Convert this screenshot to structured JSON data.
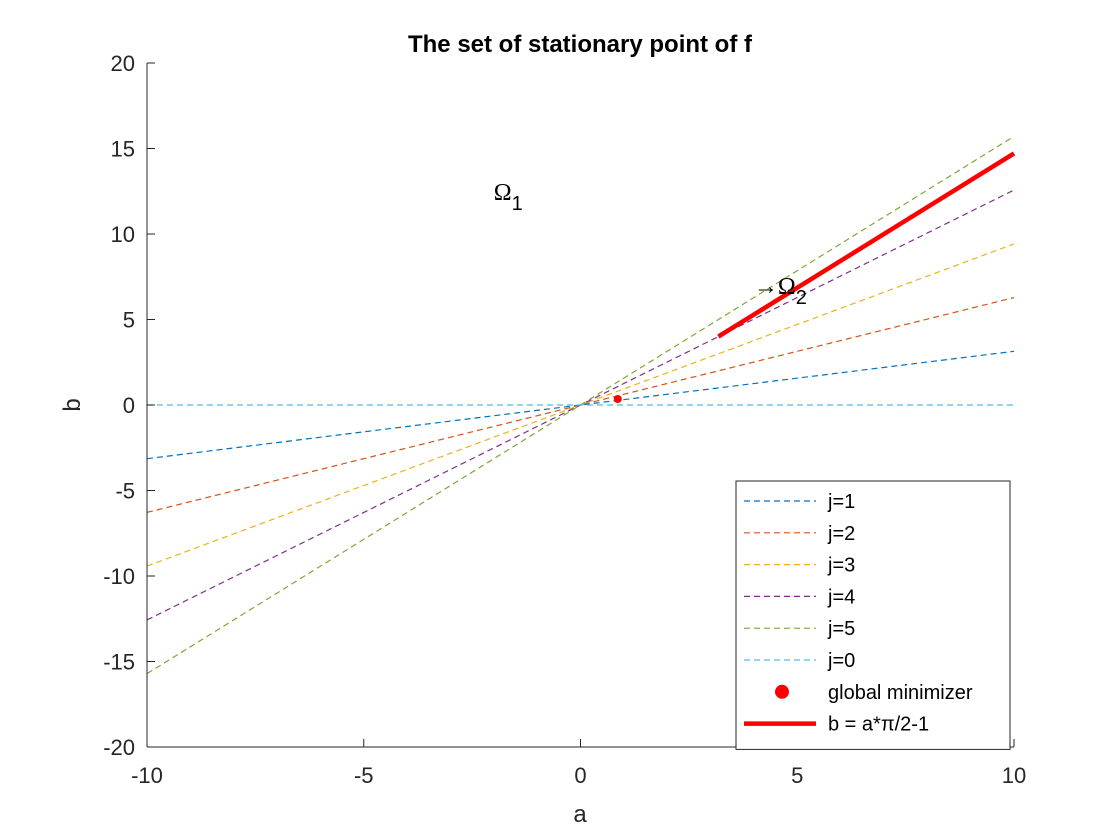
{
  "chart_data": {
    "type": "line",
    "title": "The set of stationary point of f",
    "xlabel": "a",
    "ylabel": "b",
    "xlim": [
      -10,
      10
    ],
    "ylim": [
      -20,
      20
    ],
    "xticks": [
      -10,
      -5,
      0,
      5,
      10
    ],
    "yticks": [
      -20,
      -15,
      -10,
      -5,
      0,
      5,
      10,
      15,
      20
    ],
    "xtick_labels": [
      "-10",
      "-5",
      "0",
      "5",
      "10"
    ],
    "ytick_labels": [
      "-20",
      "-15",
      "-10",
      "-5",
      "0",
      "5",
      "10",
      "15",
      "20"
    ],
    "series": [
      {
        "name": "j=1",
        "style": "dashed",
        "color": "#0072BD",
        "x": [
          -10,
          10
        ],
        "y": [
          -3.14,
          3.14
        ]
      },
      {
        "name": "j=2",
        "style": "dashed",
        "color": "#D95319",
        "x": [
          -10,
          10
        ],
        "y": [
          -6.28,
          6.28
        ]
      },
      {
        "name": "j=3",
        "style": "dashed",
        "color": "#EDB120",
        "x": [
          -10,
          10
        ],
        "y": [
          -9.42,
          9.42
        ]
      },
      {
        "name": "j=4",
        "style": "dashed",
        "color": "#7E2F8E",
        "x": [
          -10,
          10
        ],
        "y": [
          -12.57,
          12.57
        ]
      },
      {
        "name": "j=5",
        "style": "dashed",
        "color": "#77AC30",
        "x": [
          -10,
          10
        ],
        "y": [
          -15.71,
          15.71
        ]
      },
      {
        "name": "j=0",
        "style": "dashed",
        "color": "#4DBEEE",
        "x": [
          -10,
          10
        ],
        "y": [
          0,
          0
        ]
      },
      {
        "name": "global minimizer",
        "style": "marker",
        "color": "#FF0000",
        "x": [
          0.86
        ],
        "y": [
          0.35
        ]
      },
      {
        "name": "b = a*π/2-1",
        "style": "solid-thick",
        "color": "#FF0000",
        "x": [
          3.18,
          10
        ],
        "y": [
          4.0,
          14.71
        ]
      }
    ],
    "annotations": [
      {
        "text": "Ω",
        "sub": "1",
        "x": -2.0,
        "y": 12.0
      },
      {
        "text": "→Ω",
        "sub": "2",
        "x": 4.0,
        "y": 6.5
      }
    ],
    "legend_position": "bottom-right"
  }
}
